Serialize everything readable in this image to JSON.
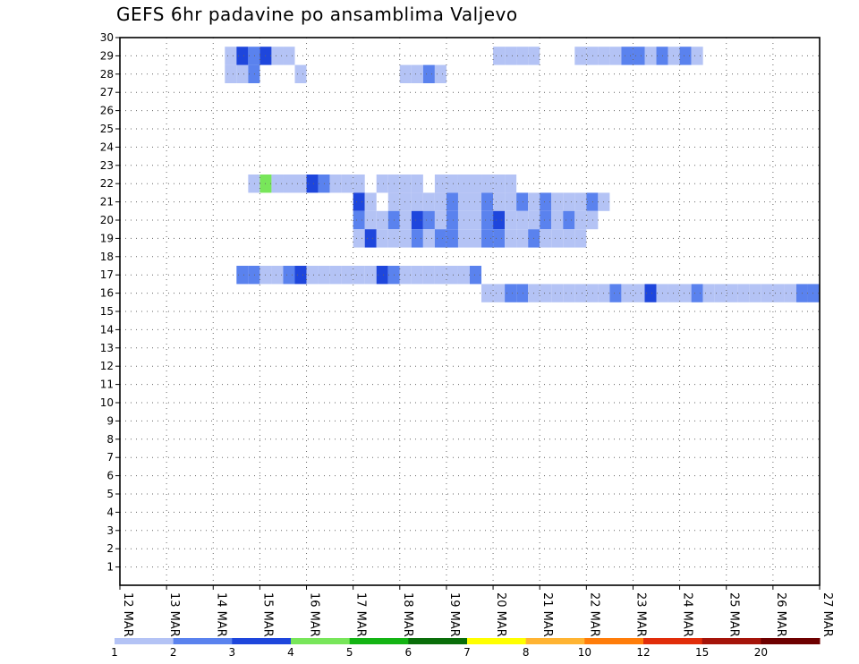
{
  "chart_data": {
    "type": "heatmap",
    "title": "GEFS 6hr padavine po ansamblima Valjevo",
    "xlabel": "",
    "ylabel": "",
    "x_tick_labels": [
      "12 MAR",
      "13 MAR",
      "14 MAR",
      "15 MAR",
      "16 MAR",
      "17 MAR",
      "18 MAR",
      "19 MAR",
      "20 MAR",
      "21 MAR",
      "22 MAR",
      "23 MAR",
      "24 MAR",
      "25 MAR",
      "26 MAR",
      "27 MAR"
    ],
    "xlim_days": [
      0,
      15
    ],
    "y_tick_labels": [
      "1",
      "2",
      "3",
      "4",
      "5",
      "6",
      "7",
      "8",
      "9",
      "10",
      "11",
      "12",
      "13",
      "14",
      "15",
      "16",
      "17",
      "18",
      "19",
      "20",
      "21",
      "22",
      "23",
      "24",
      "25",
      "26",
      "27",
      "28",
      "29",
      "30"
    ],
    "ylim": [
      0,
      30
    ],
    "time_step_hours": 6,
    "grid": true,
    "colorbar": {
      "labels": [
        "1",
        "2",
        "3",
        "4",
        "5",
        "6",
        "7",
        "8",
        "10",
        "12",
        "15",
        "20"
      ],
      "thresholds": [
        1,
        2,
        3,
        4,
        5,
        6,
        7,
        8,
        10,
        12,
        15,
        20
      ],
      "colors": [
        "#b4c3f5",
        "#5a82ee",
        "#1e46dc",
        "#78e65a",
        "#14b414",
        "#0a6e0a",
        "#ffff00",
        "#ffb432",
        "#ff7d0a",
        "#e12d0a",
        "#a5140a",
        "#6e0000"
      ]
    },
    "cells_legend": "each cell: [step_index_from_12_MAR_00UTC_in_6h_steps, ensemble_member, precip_class_index]",
    "cells": [
      [
        9,
        28,
        0
      ],
      [
        10,
        28,
        0
      ],
      [
        11,
        28,
        1
      ],
      [
        15,
        28,
        0
      ],
      [
        24,
        28,
        0
      ],
      [
        25,
        28,
        0
      ],
      [
        26,
        28,
        1
      ],
      [
        27,
        28,
        0
      ],
      [
        9,
        29,
        0
      ],
      [
        10,
        29,
        2
      ],
      [
        11,
        29,
        1
      ],
      [
        12,
        29,
        2
      ],
      [
        13,
        29,
        0
      ],
      [
        14,
        29,
        0
      ],
      [
        32,
        29,
        0
      ],
      [
        33,
        29,
        0
      ],
      [
        34,
        29,
        0
      ],
      [
        35,
        29,
        0
      ],
      [
        39,
        29,
        0
      ],
      [
        40,
        29,
        0
      ],
      [
        41,
        29,
        0
      ],
      [
        42,
        29,
        0
      ],
      [
        43,
        29,
        1
      ],
      [
        44,
        29,
        1
      ],
      [
        45,
        29,
        0
      ],
      [
        46,
        29,
        1
      ],
      [
        47,
        29,
        0
      ],
      [
        48,
        29,
        1
      ],
      [
        49,
        29,
        0
      ],
      [
        11,
        22,
        0
      ],
      [
        12,
        22,
        3
      ],
      [
        13,
        22,
        0
      ],
      [
        14,
        22,
        0
      ],
      [
        15,
        22,
        0
      ],
      [
        16,
        22,
        2
      ],
      [
        17,
        22,
        1
      ],
      [
        18,
        22,
        0
      ],
      [
        19,
        22,
        0
      ],
      [
        20,
        22,
        0
      ],
      [
        22,
        22,
        0
      ],
      [
        23,
        22,
        0
      ],
      [
        24,
        22,
        0
      ],
      [
        25,
        22,
        0
      ],
      [
        27,
        22,
        0
      ],
      [
        28,
        22,
        0
      ],
      [
        29,
        22,
        0
      ],
      [
        30,
        22,
        0
      ],
      [
        31,
        22,
        0
      ],
      [
        32,
        22,
        0
      ],
      [
        33,
        22,
        0
      ],
      [
        20,
        21,
        2
      ],
      [
        21,
        21,
        0
      ],
      [
        23,
        21,
        0
      ],
      [
        24,
        21,
        0
      ],
      [
        25,
        21,
        0
      ],
      [
        26,
        21,
        0
      ],
      [
        27,
        21,
        0
      ],
      [
        28,
        21,
        1
      ],
      [
        29,
        21,
        0
      ],
      [
        30,
        21,
        0
      ],
      [
        31,
        21,
        1
      ],
      [
        32,
        21,
        0
      ],
      [
        33,
        21,
        0
      ],
      [
        34,
        21,
        1
      ],
      [
        35,
        21,
        0
      ],
      [
        36,
        21,
        1
      ],
      [
        37,
        21,
        0
      ],
      [
        38,
        21,
        0
      ],
      [
        39,
        21,
        0
      ],
      [
        40,
        21,
        1
      ],
      [
        41,
        21,
        0
      ],
      [
        20,
        20,
        1
      ],
      [
        21,
        20,
        0
      ],
      [
        22,
        20,
        0
      ],
      [
        23,
        20,
        1
      ],
      [
        24,
        20,
        0
      ],
      [
        25,
        20,
        2
      ],
      [
        26,
        20,
        1
      ],
      [
        27,
        20,
        0
      ],
      [
        28,
        20,
        1
      ],
      [
        29,
        20,
        0
      ],
      [
        30,
        20,
        0
      ],
      [
        31,
        20,
        1
      ],
      [
        32,
        20,
        2
      ],
      [
        33,
        20,
        0
      ],
      [
        34,
        20,
        0
      ],
      [
        35,
        20,
        0
      ],
      [
        36,
        20,
        1
      ],
      [
        37,
        20,
        0
      ],
      [
        38,
        20,
        1
      ],
      [
        39,
        20,
        0
      ],
      [
        40,
        20,
        0
      ],
      [
        20,
        19,
        0
      ],
      [
        21,
        19,
        2
      ],
      [
        22,
        19,
        0
      ],
      [
        23,
        19,
        0
      ],
      [
        24,
        19,
        0
      ],
      [
        25,
        19,
        1
      ],
      [
        26,
        19,
        0
      ],
      [
        27,
        19,
        1
      ],
      [
        28,
        19,
        1
      ],
      [
        29,
        19,
        0
      ],
      [
        30,
        19,
        0
      ],
      [
        31,
        19,
        1
      ],
      [
        32,
        19,
        1
      ],
      [
        33,
        19,
        0
      ],
      [
        34,
        19,
        0
      ],
      [
        35,
        19,
        1
      ],
      [
        36,
        19,
        0
      ],
      [
        37,
        19,
        0
      ],
      [
        38,
        19,
        0
      ],
      [
        39,
        19,
        0
      ],
      [
        10,
        17,
        1
      ],
      [
        11,
        17,
        1
      ],
      [
        12,
        17,
        0
      ],
      [
        13,
        17,
        0
      ],
      [
        14,
        17,
        1
      ],
      [
        15,
        17,
        2
      ],
      [
        16,
        17,
        0
      ],
      [
        17,
        17,
        0
      ],
      [
        18,
        17,
        0
      ],
      [
        19,
        17,
        0
      ],
      [
        20,
        17,
        0
      ],
      [
        21,
        17,
        0
      ],
      [
        22,
        17,
        2
      ],
      [
        23,
        17,
        1
      ],
      [
        24,
        17,
        0
      ],
      [
        25,
        17,
        0
      ],
      [
        26,
        17,
        0
      ],
      [
        27,
        17,
        0
      ],
      [
        28,
        17,
        0
      ],
      [
        29,
        17,
        0
      ],
      [
        30,
        17,
        1
      ],
      [
        31,
        16,
        0
      ],
      [
        32,
        16,
        0
      ],
      [
        33,
        16,
        1
      ],
      [
        34,
        16,
        1
      ],
      [
        35,
        16,
        0
      ],
      [
        36,
        16,
        0
      ],
      [
        37,
        16,
        0
      ],
      [
        38,
        16,
        0
      ],
      [
        39,
        16,
        0
      ],
      [
        40,
        16,
        0
      ],
      [
        41,
        16,
        0
      ],
      [
        42,
        16,
        1
      ],
      [
        43,
        16,
        0
      ],
      [
        44,
        16,
        0
      ],
      [
        45,
        16,
        2
      ],
      [
        46,
        16,
        0
      ],
      [
        47,
        16,
        0
      ],
      [
        48,
        16,
        0
      ],
      [
        49,
        16,
        1
      ],
      [
        50,
        16,
        0
      ],
      [
        51,
        16,
        0
      ],
      [
        52,
        16,
        0
      ],
      [
        53,
        16,
        0
      ],
      [
        54,
        16,
        0
      ],
      [
        55,
        16,
        0
      ],
      [
        56,
        16,
        0
      ],
      [
        57,
        16,
        0
      ],
      [
        58,
        16,
        1
      ],
      [
        59,
        16,
        1
      ]
    ]
  }
}
